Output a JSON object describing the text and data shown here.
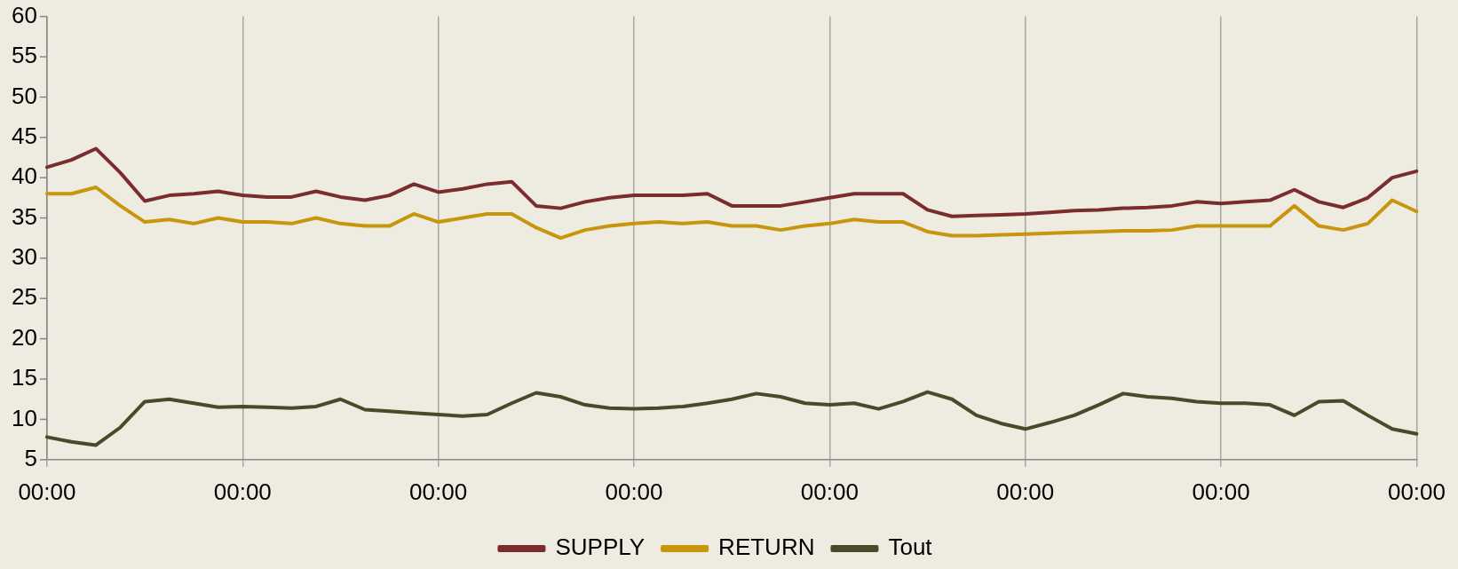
{
  "chart_data": {
    "type": "line",
    "categories": [
      "00:00",
      null,
      null,
      null,
      null,
      null,
      null,
      null,
      "00:00",
      null,
      null,
      null,
      null,
      null,
      null,
      null,
      "00:00",
      null,
      null,
      null,
      null,
      null,
      null,
      null,
      "00:00",
      null,
      null,
      null,
      null,
      null,
      null,
      null,
      "00:00",
      null,
      null,
      null,
      null,
      null,
      null,
      null,
      "00:00",
      null,
      null,
      null,
      null,
      null,
      null,
      null,
      "00:00",
      null,
      null,
      null,
      null,
      null,
      null,
      null,
      "00:00"
    ],
    "ylim": [
      5,
      60
    ],
    "yticks": [
      5,
      10,
      15,
      20,
      25,
      30,
      35,
      40,
      45,
      50,
      55,
      60
    ],
    "grid": "x",
    "legend": "bottom",
    "marker": "none",
    "line_style": "solid",
    "series": [
      {
        "name": "SUPPLY",
        "color": "#7b2c2c",
        "values": [
          41.3,
          42.2,
          43.6,
          40.6,
          37.1,
          37.8,
          38,
          38.3,
          37.8,
          37.6,
          37.6,
          38.3,
          37.6,
          37.2,
          37.8,
          39.2,
          38.2,
          38.6,
          39.2,
          39.5,
          36.5,
          36.2,
          37,
          37.5,
          37.8,
          37.8,
          37.8,
          38,
          36.5,
          36.5,
          36.5,
          37,
          37.5,
          38,
          38,
          38,
          36,
          35.2,
          35.3,
          35.4,
          35.5,
          35.7,
          35.9,
          36,
          36.2,
          36.3,
          36.5,
          37,
          36.8,
          37,
          37.2,
          38.5,
          37,
          36.3,
          37.5,
          40,
          40.8
        ]
      },
      {
        "name": "RETURN",
        "color": "#c8960c",
        "values": [
          38,
          38,
          38.8,
          36.5,
          34.5,
          34.8,
          34.3,
          35,
          34.5,
          34.5,
          34.3,
          35,
          34.3,
          34,
          34,
          35.5,
          34.5,
          35,
          35.5,
          35.5,
          33.8,
          32.5,
          33.5,
          34,
          34.3,
          34.5,
          34.3,
          34.5,
          34,
          34,
          33.5,
          34,
          34.3,
          34.8,
          34.5,
          34.5,
          33.3,
          32.8,
          32.8,
          32.9,
          33,
          33.1,
          33.2,
          33.3,
          33.4,
          33.4,
          33.5,
          34,
          34,
          34,
          34,
          36.5,
          34,
          33.5,
          34.3,
          37.2,
          35.8
        ]
      },
      {
        "name": "Tout",
        "color": "#4a4a2a",
        "values": [
          7.8,
          7.2,
          6.8,
          9,
          12.2,
          12.5,
          12,
          11.5,
          11.6,
          11.5,
          11.4,
          11.6,
          12.5,
          11.2,
          11,
          10.8,
          10.6,
          10.4,
          10.6,
          12,
          13.3,
          12.8,
          11.8,
          11.4,
          11.3,
          11.4,
          11.6,
          12,
          12.5,
          13.2,
          12.8,
          12,
          11.8,
          12,
          11.3,
          12.2,
          13.4,
          12.5,
          10.5,
          9.5,
          8.8,
          9.6,
          10.5,
          11.8,
          13.2,
          12.8,
          12.6,
          12.2,
          12,
          12,
          11.8,
          10.5,
          12.2,
          12.3,
          10.5,
          8.8,
          8.2
        ]
      }
    ]
  }
}
